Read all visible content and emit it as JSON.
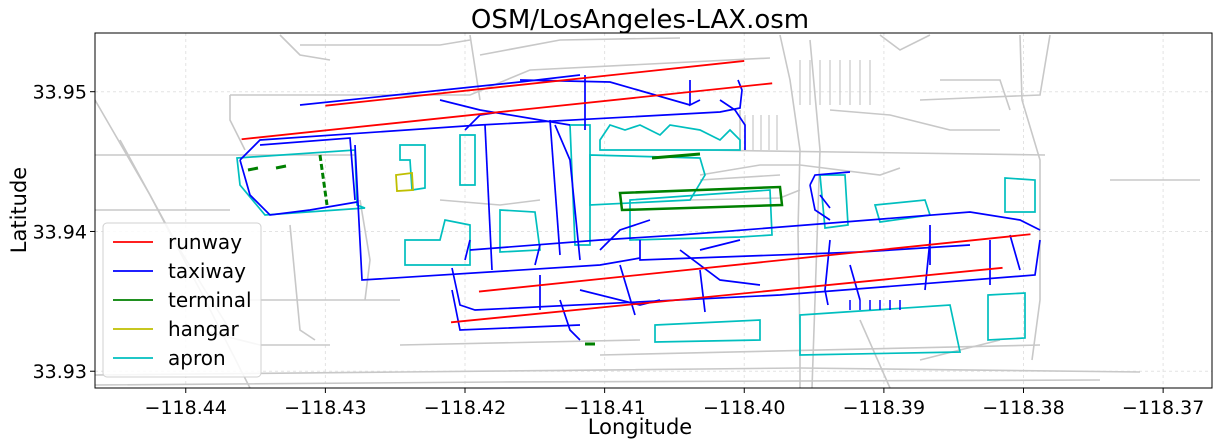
{
  "chart_data": {
    "type": "map",
    "title": "OSM/LosAngeles-LAX.osm",
    "xlabel": "Longitude",
    "ylabel": "Latitude",
    "xlim": [
      -118.4465,
      -118.3665
    ],
    "ylim": [
      33.9288,
      33.9542
    ],
    "grid": true,
    "legend_position": "lower-left",
    "xticks": [
      -118.44,
      -118.43,
      -118.42,
      -118.41,
      -118.4,
      -118.39,
      -118.38,
      -118.37
    ],
    "xtick_labels": [
      "−118.44",
      "−118.43",
      "−118.42",
      "−118.41",
      "−118.40",
      "−118.39",
      "−118.38",
      "−118.37"
    ],
    "yticks": [
      33.93,
      33.94,
      33.95
    ],
    "ytick_labels": [
      "33.93",
      "33.94",
      "33.95"
    ],
    "legend": [
      {
        "label": "runway",
        "color": "#ff0000"
      },
      {
        "label": "taxiway",
        "color": "#0000ff"
      },
      {
        "label": "terminal",
        "color": "#008000"
      },
      {
        "label": "hangar",
        "color": "#bfbf00"
      },
      {
        "label": "apron",
        "color": "#00bfbf"
      }
    ],
    "runways": [
      [
        [
          -118.436,
          33.9466
        ],
        [
          -118.398,
          33.9506
        ]
      ],
      [
        [
          -118.43,
          33.949
        ],
        [
          -118.4,
          33.9522
        ]
      ],
      [
        [
          -118.421,
          33.9335
        ],
        [
          -118.3815,
          33.9374
        ]
      ],
      [
        [
          -118.419,
          33.9357
        ],
        [
          -118.3795,
          33.9398
        ]
      ]
    ]
  }
}
